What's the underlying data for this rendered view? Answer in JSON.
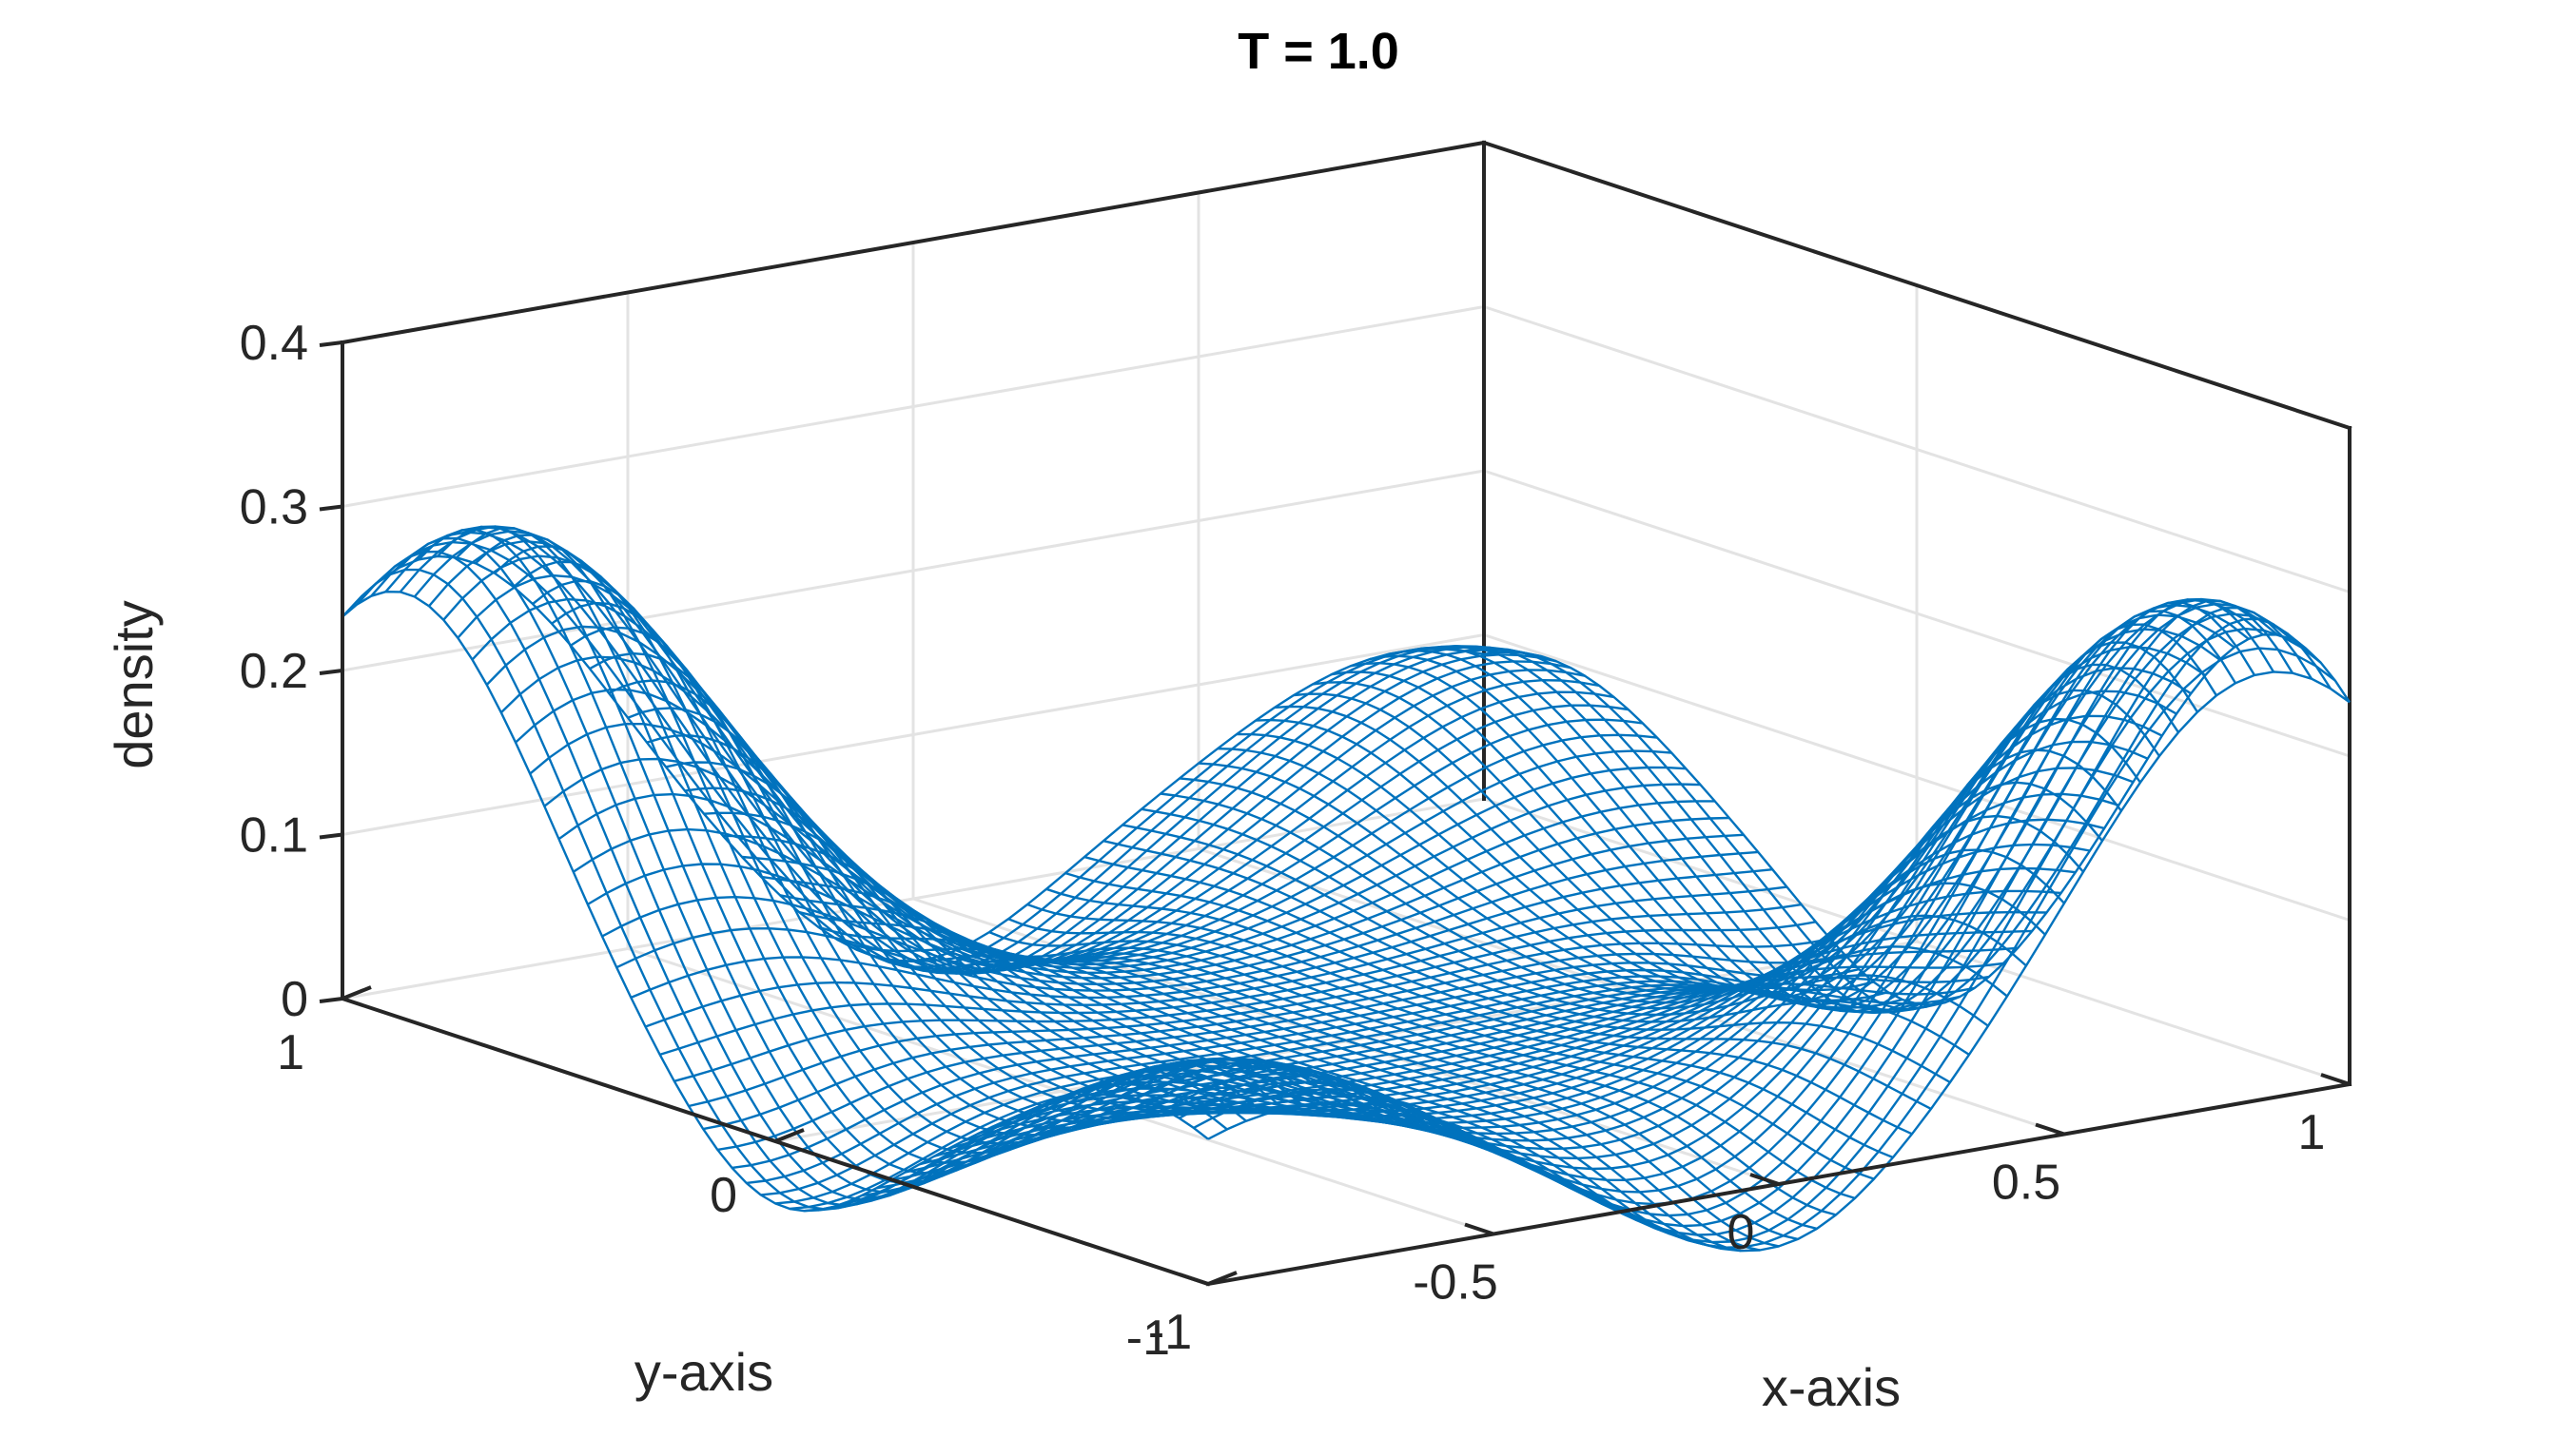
{
  "chart_data": {
    "type": "surface-mesh",
    "title": "T = 1.0",
    "xlabel": "x-axis",
    "ylabel": "y-axis",
    "zlabel": "density",
    "xlim": [
      -1,
      1
    ],
    "ylim": [
      -1,
      1
    ],
    "zlim": [
      0,
      0.4
    ],
    "xticks": [
      -1,
      -0.5,
      0,
      0.5,
      1
    ],
    "xtick_labels": [
      "-1",
      "-0.5",
      "0",
      "0.5",
      "1"
    ],
    "yticks": [
      -1,
      0,
      1
    ],
    "ytick_labels": [
      "-1",
      "0",
      "1"
    ],
    "zticks": [
      0,
      0.1,
      0.2,
      0.3,
      0.4
    ],
    "ztick_labels": [
      "0",
      "0.1",
      "0.2",
      "0.3",
      "0.4"
    ],
    "grid": true,
    "line_color": "#0072bd",
    "peaks": [
      {
        "x": -0.85,
        "y": 0.85,
        "density": 0.29
      },
      {
        "x": 0.85,
        "y": -0.85,
        "density": 0.29
      },
      {
        "x": -0.85,
        "y": -0.85,
        "density": 0.11
      },
      {
        "x": 0.85,
        "y": 0.85,
        "density": 0.11
      }
    ],
    "min_density": -0.05
  }
}
